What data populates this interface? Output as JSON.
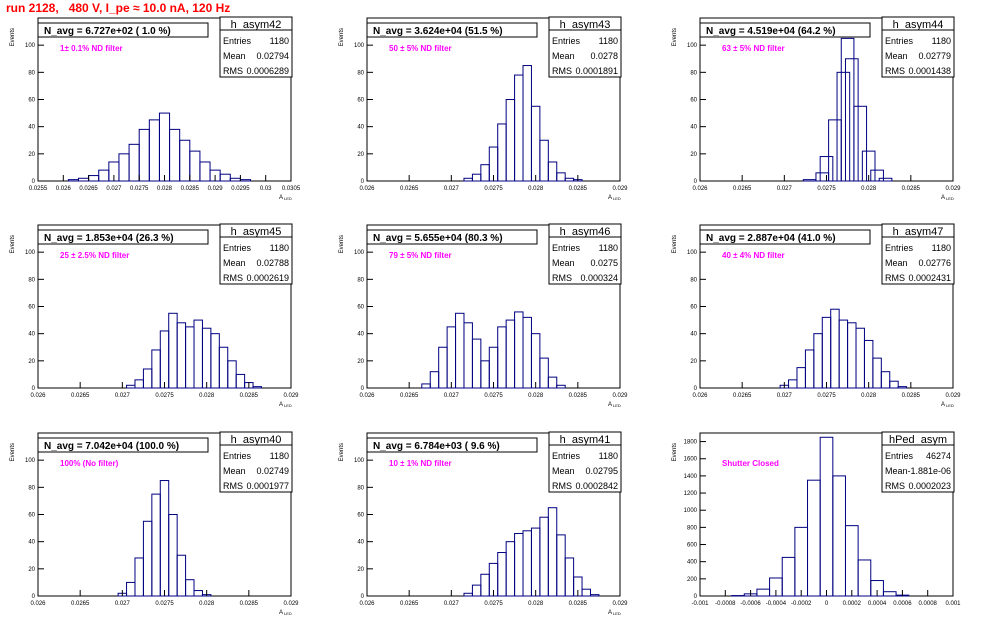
{
  "run_title": "run 2128,   480 V, I_pe ≈ 10.0 nA, 120 Hz",
  "colors": {
    "histogram": "#000080",
    "annotation": "#ff00ff",
    "title": "#ff0000",
    "axes": "#000000"
  },
  "stats_labels": {
    "entries": "Entries",
    "mean": "Mean",
    "rms": "RMS"
  },
  "chart_data": [
    {
      "type": "histogram",
      "name": "h_asym42",
      "navg_label": "N_avg = 6.727e+02 ( 1.0 %)",
      "note": "1± 0.1% ND filter",
      "stats": {
        "entries": "1180",
        "mean": "0.02794",
        "rms": "0.0006289"
      },
      "xlabel": "A",
      "xlabel_sub": "LED",
      "ylabel": "Events",
      "xlim": [
        0.0255,
        0.0305
      ],
      "ylim": [
        0,
        120
      ],
      "xticks": [
        0.0255,
        0.026,
        0.0265,
        0.027,
        0.0275,
        0.028,
        0.0285,
        0.029,
        0.0295,
        0.03,
        0.0305
      ],
      "xtick_labels": [
        "0.0255",
        "0.026",
        "0.0265",
        "0.027",
        "0.0275",
        "0.028",
        "0.0285",
        "0.029",
        "0.0295",
        "0.03",
        "0.0305"
      ],
      "yticks": [
        0,
        20,
        40,
        60,
        80,
        100
      ],
      "x": [
        0.0262,
        0.0264,
        0.0266,
        0.0268,
        0.027,
        0.0272,
        0.0274,
        0.0276,
        0.0278,
        0.028,
        0.0282,
        0.0284,
        0.0286,
        0.0288,
        0.029,
        0.0292,
        0.0294,
        0.0296
      ],
      "y": [
        1,
        2,
        4,
        8,
        14,
        20,
        27,
        38,
        45,
        50,
        38,
        30,
        22,
        14,
        8,
        5,
        2,
        1
      ]
    },
    {
      "type": "histogram",
      "name": "h_asym43",
      "navg_label": "N_avg = 3.624e+04 (51.5 %)",
      "note": "50 ± 5% ND filter",
      "stats": {
        "entries": "1180",
        "mean": "0.0278",
        "rms": "0.0001891"
      },
      "xlabel": "A",
      "xlabel_sub": "LED",
      "ylabel": "Events",
      "xlim": [
        0.026,
        0.029
      ],
      "ylim": [
        0,
        120
      ],
      "xticks": [
        0.026,
        0.0265,
        0.027,
        0.0275,
        0.028,
        0.0285,
        0.029
      ],
      "xtick_labels": [
        "0.026",
        "0.0265",
        "0.027",
        "0.0275",
        "0.028",
        "0.0285",
        "0.029"
      ],
      "yticks": [
        0,
        20,
        40,
        60,
        80,
        100
      ],
      "x": [
        0.0272,
        0.0273,
        0.0274,
        0.0275,
        0.0276,
        0.0277,
        0.0278,
        0.0279,
        0.028,
        0.0281,
        0.0282,
        0.0283,
        0.0284,
        0.0285
      ],
      "y": [
        2,
        5,
        12,
        25,
        42,
        60,
        78,
        85,
        55,
        30,
        14,
        6,
        2,
        1
      ]
    },
    {
      "type": "histogram",
      "name": "h_asym44",
      "navg_label": "N_avg = 4.519e+04 (64.2 %)",
      "note": "63 ± 5% ND filter",
      "stats": {
        "entries": "1180",
        "mean": "0.02779",
        "rms": "0.0001438"
      },
      "xlabel": "A",
      "xlabel_sub": "LED",
      "ylabel": "Events",
      "xlim": [
        0.026,
        0.029
      ],
      "ylim": [
        0,
        120
      ],
      "xticks": [
        0.026,
        0.0265,
        0.027,
        0.0275,
        0.028,
        0.0285,
        0.029
      ],
      "xtick_labels": [
        "0.026",
        "0.0265",
        "0.027",
        "0.0275",
        "0.028",
        "0.0285",
        "0.029"
      ],
      "yticks": [
        0,
        20,
        40,
        60,
        80,
        100
      ],
      "x": [
        0.0273,
        0.02745,
        0.0275,
        0.0276,
        0.0277,
        0.02775,
        0.0278,
        0.0279,
        0.028,
        0.0281,
        0.0282
      ],
      "y": [
        1,
        6,
        18,
        45,
        80,
        105,
        90,
        55,
        22,
        8,
        2
      ]
    },
    {
      "type": "histogram",
      "name": "h_asym45",
      "navg_label": "N_avg = 1.853e+04 (26.3 %)",
      "note": "25 ± 2.5% ND filter",
      "stats": {
        "entries": "1180",
        "mean": "0.02788",
        "rms": "0.0002619"
      },
      "xlabel": "A",
      "xlabel_sub": "LED",
      "ylabel": "Events",
      "xlim": [
        0.026,
        0.029
      ],
      "ylim": [
        0,
        120
      ],
      "xticks": [
        0.026,
        0.0265,
        0.027,
        0.0275,
        0.028,
        0.0285,
        0.029
      ],
      "xtick_labels": [
        "0.026",
        "0.0265",
        "0.027",
        "0.0275",
        "0.028",
        "0.0285",
        "0.029"
      ],
      "yticks": [
        0,
        20,
        40,
        60,
        80,
        100
      ],
      "x": [
        0.0271,
        0.0272,
        0.0273,
        0.0274,
        0.0275,
        0.0276,
        0.0277,
        0.0278,
        0.0279,
        0.028,
        0.0281,
        0.0282,
        0.0283,
        0.0284,
        0.0285,
        0.0286
      ],
      "y": [
        2,
        6,
        14,
        28,
        42,
        55,
        48,
        45,
        50,
        44,
        40,
        30,
        20,
        10,
        4,
        1
      ]
    },
    {
      "type": "histogram",
      "name": "h_asym46",
      "navg_label": "N_avg = 5.655e+04 (80.3 %)",
      "note": "79 ± 5% ND filter",
      "stats": {
        "entries": "1180",
        "mean": "0.0275",
        "rms": "0.000324"
      },
      "xlabel": "A",
      "xlabel_sub": "LED",
      "ylabel": "Events",
      "xlim": [
        0.026,
        0.029
      ],
      "ylim": [
        0,
        120
      ],
      "xticks": [
        0.026,
        0.0265,
        0.027,
        0.0275,
        0.028,
        0.0285,
        0.029
      ],
      "xtick_labels": [
        "0.026",
        "0.0265",
        "0.027",
        "0.0275",
        "0.028",
        "0.0285",
        "0.029"
      ],
      "yticks": [
        0,
        20,
        40,
        60,
        80,
        100
      ],
      "x": [
        0.0267,
        0.0268,
        0.0269,
        0.027,
        0.0271,
        0.0272,
        0.0273,
        0.0274,
        0.0275,
        0.0276,
        0.0277,
        0.0278,
        0.0279,
        0.028,
        0.0281,
        0.0282,
        0.0283
      ],
      "y": [
        3,
        12,
        30,
        45,
        55,
        48,
        36,
        20,
        30,
        45,
        50,
        56,
        52,
        40,
        22,
        8,
        2
      ]
    },
    {
      "type": "histogram",
      "name": "h_asym47",
      "navg_label": "N_avg = 2.887e+04 (41.0 %)",
      "note": "40 ± 4% ND filter",
      "stats": {
        "entries": "1180",
        "mean": "0.02776",
        "rms": "0.0002431"
      },
      "xlabel": "A",
      "xlabel_sub": "LED",
      "ylabel": "Events",
      "xlim": [
        0.026,
        0.029
      ],
      "ylim": [
        0,
        120
      ],
      "xticks": [
        0.026,
        0.0265,
        0.027,
        0.0275,
        0.028,
        0.0285,
        0.029
      ],
      "xtick_labels": [
        "0.026",
        "0.0265",
        "0.027",
        "0.0275",
        "0.028",
        "0.0285",
        "0.029"
      ],
      "yticks": [
        0,
        20,
        40,
        60,
        80,
        100
      ],
      "x": [
        0.027,
        0.0271,
        0.0272,
        0.0273,
        0.0274,
        0.0275,
        0.0276,
        0.0277,
        0.0278,
        0.0279,
        0.028,
        0.0281,
        0.0282,
        0.0283,
        0.0284
      ],
      "y": [
        2,
        6,
        15,
        28,
        40,
        52,
        58,
        50,
        48,
        44,
        35,
        22,
        12,
        5,
        1
      ]
    },
    {
      "type": "histogram",
      "name": "h_asym40",
      "navg_label": "N_avg = 7.042e+04 (100.0 %)",
      "note": "100% (No filter)",
      "stats": {
        "entries": "1180",
        "mean": "0.02749",
        "rms": "0.0001977"
      },
      "xlabel": "A",
      "xlabel_sub": "LED",
      "ylabel": "Events",
      "xlim": [
        0.026,
        0.029
      ],
      "ylim": [
        0,
        120
      ],
      "xticks": [
        0.026,
        0.0265,
        0.027,
        0.0275,
        0.028,
        0.0285,
        0.029
      ],
      "xtick_labels": [
        "0.026",
        "0.0265",
        "0.027",
        "0.0275",
        "0.028",
        "0.0285",
        "0.029"
      ],
      "yticks": [
        0,
        20,
        40,
        60,
        80,
        100
      ],
      "x": [
        0.027,
        0.0271,
        0.0272,
        0.0273,
        0.0274,
        0.0275,
        0.0276,
        0.0277,
        0.0278,
        0.0279,
        0.028
      ],
      "y": [
        2,
        10,
        28,
        55,
        75,
        85,
        60,
        30,
        12,
        4,
        1
      ]
    },
    {
      "type": "histogram",
      "name": "h_asym41",
      "navg_label": "N_avg = 6.784e+03 ( 9.6 %)",
      "note": "10 ± 1% ND filter",
      "stats": {
        "entries": "1180",
        "mean": "0.02795",
        "rms": "0.0002842"
      },
      "xlabel": "A",
      "xlabel_sub": "LED",
      "ylabel": "Events",
      "xlim": [
        0.026,
        0.029
      ],
      "ylim": [
        0,
        120
      ],
      "xticks": [
        0.026,
        0.0265,
        0.027,
        0.0275,
        0.028,
        0.0285,
        0.029
      ],
      "xtick_labels": [
        "0.026",
        "0.0265",
        "0.027",
        "0.0275",
        "0.028",
        "0.0285",
        "0.029"
      ],
      "yticks": [
        0,
        20,
        40,
        60,
        80,
        100
      ],
      "x": [
        0.0272,
        0.0273,
        0.0274,
        0.0275,
        0.0276,
        0.0277,
        0.0278,
        0.0279,
        0.028,
        0.0281,
        0.0282,
        0.0283,
        0.0284,
        0.0285,
        0.0286,
        0.0287
      ],
      "y": [
        2,
        8,
        16,
        24,
        32,
        40,
        46,
        48,
        50,
        58,
        65,
        45,
        28,
        14,
        5,
        1
      ]
    },
    {
      "type": "histogram",
      "name": "hPed_asym",
      "navg_label": "",
      "note": "Shutter Closed",
      "stats": {
        "entries": "46274",
        "mean": "-1.881e-06",
        "rms": "0.0002023"
      },
      "xlabel": "",
      "xlabel_sub": "",
      "ylabel": "Events",
      "xlim": [
        -0.001,
        0.001
      ],
      "ylim": [
        0,
        1900
      ],
      "xticks": [
        -0.001,
        -0.0008,
        -0.0006,
        -0.0004,
        -0.0002,
        0,
        0.0002,
        0.0004,
        0.0006,
        0.0008,
        0.001
      ],
      "xtick_labels": [
        "-0.001",
        "-0.0008",
        "-0.0006",
        "-0.0004",
        "-0.0002",
        "0",
        "0.0002",
        "0.0004",
        "0.0006",
        "0.0008",
        "0.001"
      ],
      "yticks": [
        0,
        200,
        400,
        600,
        800,
        1000,
        1200,
        1400,
        1600,
        1800
      ],
      "x": [
        -0.0007,
        -0.0006,
        -0.0005,
        -0.0004,
        -0.0003,
        -0.0002,
        -0.0001,
        0,
        0.0001,
        0.0002,
        0.0003,
        0.0004,
        0.0005,
        0.0006
      ],
      "y": [
        5,
        25,
        80,
        210,
        450,
        800,
        1350,
        1850,
        1400,
        820,
        420,
        180,
        50,
        10
      ]
    }
  ]
}
